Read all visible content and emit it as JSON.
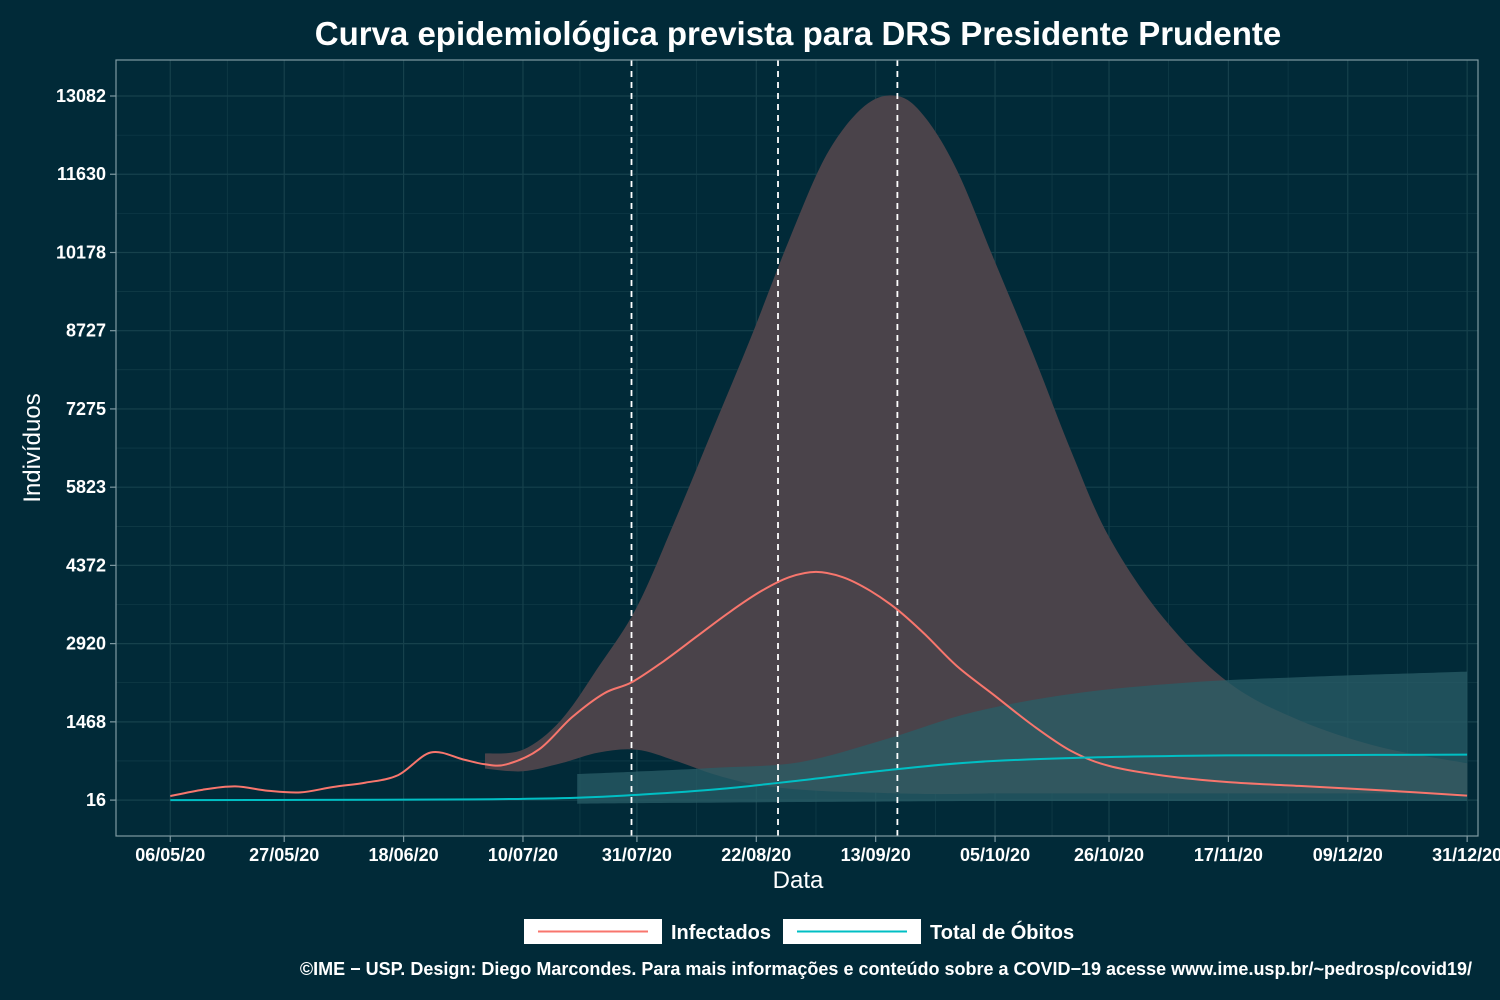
{
  "chart_data": {
    "type": "line",
    "title": "Curva epidemiológica prevista para DRS Presidente Prudente",
    "xlabel": "Data",
    "ylabel": "Indivíduos",
    "x_ticks": [
      "06/05/20",
      "27/05/20",
      "18/06/20",
      "10/07/20",
      "31/07/20",
      "22/08/20",
      "13/09/20",
      "05/10/20",
      "26/10/20",
      "17/11/20",
      "09/12/20",
      "31/12/20"
    ],
    "y_ticks": [
      16,
      1468,
      2920,
      4372,
      5823,
      7275,
      8727,
      10178,
      11630,
      13082
    ],
    "xlim": [
      "2020-04-26",
      "2021-01-02"
    ],
    "ylim": [
      -650,
      13750
    ],
    "grid": true,
    "legend_position": "bottom",
    "vlines": [
      "2020-07-30",
      "2020-08-26",
      "2020-09-17"
    ],
    "series": [
      {
        "name": "Infectados",
        "color": "#f8766d",
        "x": [
          "2020-05-06",
          "2020-05-12",
          "2020-05-18",
          "2020-05-24",
          "2020-05-30",
          "2020-06-05",
          "2020-06-11",
          "2020-06-17",
          "2020-06-23",
          "2020-06-29",
          "2020-07-03",
          "2020-07-07",
          "2020-07-13",
          "2020-07-19",
          "2020-07-25",
          "2020-07-30",
          "2020-08-05",
          "2020-08-11",
          "2020-08-17",
          "2020-08-23",
          "2020-08-28",
          "2020-09-02",
          "2020-09-07",
          "2020-09-12",
          "2020-09-17",
          "2020-09-22",
          "2020-09-28",
          "2020-10-05",
          "2020-10-12",
          "2020-10-19",
          "2020-10-26",
          "2020-11-05",
          "2020-11-17",
          "2020-11-30",
          "2020-12-15",
          "2020-12-31"
        ],
        "y": [
          90,
          210,
          270,
          190,
          160,
          260,
          340,
          480,
          900,
          770,
          680,
          680,
          960,
          1550,
          2000,
          2200,
          2600,
          3050,
          3500,
          3900,
          4150,
          4250,
          4150,
          3900,
          3550,
          3100,
          2500,
          1950,
          1400,
          930,
          650,
          470,
          350,
          280,
          200,
          100
        ]
      },
      {
        "name": "Total de Óbitos",
        "color": "#00bfc4",
        "x": [
          "2020-05-06",
          "2020-06-01",
          "2020-07-01",
          "2020-07-20",
          "2020-08-01",
          "2020-08-15",
          "2020-08-30",
          "2020-09-15",
          "2020-10-01",
          "2020-10-20",
          "2020-11-10",
          "2020-12-01",
          "2020-12-31"
        ],
        "y": [
          16,
          20,
          30,
          60,
          120,
          220,
          380,
          570,
          720,
          800,
          840,
          850,
          860
        ]
      }
    ],
    "bands": [
      {
        "name": "Infectados",
        "color": "#f8766d",
        "x": [
          "2020-07-03",
          "2020-07-10",
          "2020-07-17",
          "2020-07-24",
          "2020-07-31",
          "2020-08-07",
          "2020-08-14",
          "2020-08-21",
          "2020-08-28",
          "2020-09-04",
          "2020-09-11",
          "2020-09-17",
          "2020-09-22",
          "2020-09-28",
          "2020-10-05",
          "2020-10-12",
          "2020-10-19",
          "2020-10-26",
          "2020-11-05",
          "2020-11-17",
          "2020-11-30",
          "2020-12-15",
          "2020-12-31"
        ],
        "upper": [
          880,
          950,
          1500,
          2500,
          3600,
          5200,
          6900,
          8600,
          10400,
          12000,
          12900,
          13082,
          12700,
          11700,
          10000,
          8300,
          6500,
          4900,
          3400,
          2200,
          1500,
          1000,
          700
        ],
        "lower": [
          600,
          550,
          700,
          900,
          950,
          750,
          500,
          320,
          230,
          180,
          160,
          140,
          130,
          130,
          140,
          140,
          140,
          140,
          140,
          140,
          140,
          140,
          140
        ]
      },
      {
        "name": "Total de Óbitos",
        "color": "#00bfc4",
        "x": [
          "2020-07-20",
          "2020-08-01",
          "2020-08-15",
          "2020-08-30",
          "2020-09-15",
          "2020-10-01",
          "2020-10-20",
          "2020-11-10",
          "2020-12-01",
          "2020-12-31"
        ],
        "upper": [
          500,
          550,
          620,
          720,
          1150,
          1650,
          2000,
          2200,
          2300,
          2400
        ],
        "lower": [
          -50,
          -40,
          -30,
          -20,
          -10,
          0,
          0,
          0,
          0,
          0
        ]
      }
    ]
  },
  "legend": {
    "items": [
      {
        "label": "Infectados",
        "color": "#f8766d"
      },
      {
        "label": "Total de Óbitos",
        "color": "#00bfc4"
      }
    ]
  },
  "caption": "©IME − USP. Design: Diego Marcondes. Para mais informações e conteúdo sobre a COVID−19 acesse www.ime.usp.br/~pedrosp/covid19/",
  "colors": {
    "background": "#012a38",
    "ribbon_infectados": "#4a434a",
    "ribbon_obitos": "#2a5d67",
    "grid": "#16414c",
    "axis": "#7f9aa2",
    "vline": "#ffffff"
  }
}
